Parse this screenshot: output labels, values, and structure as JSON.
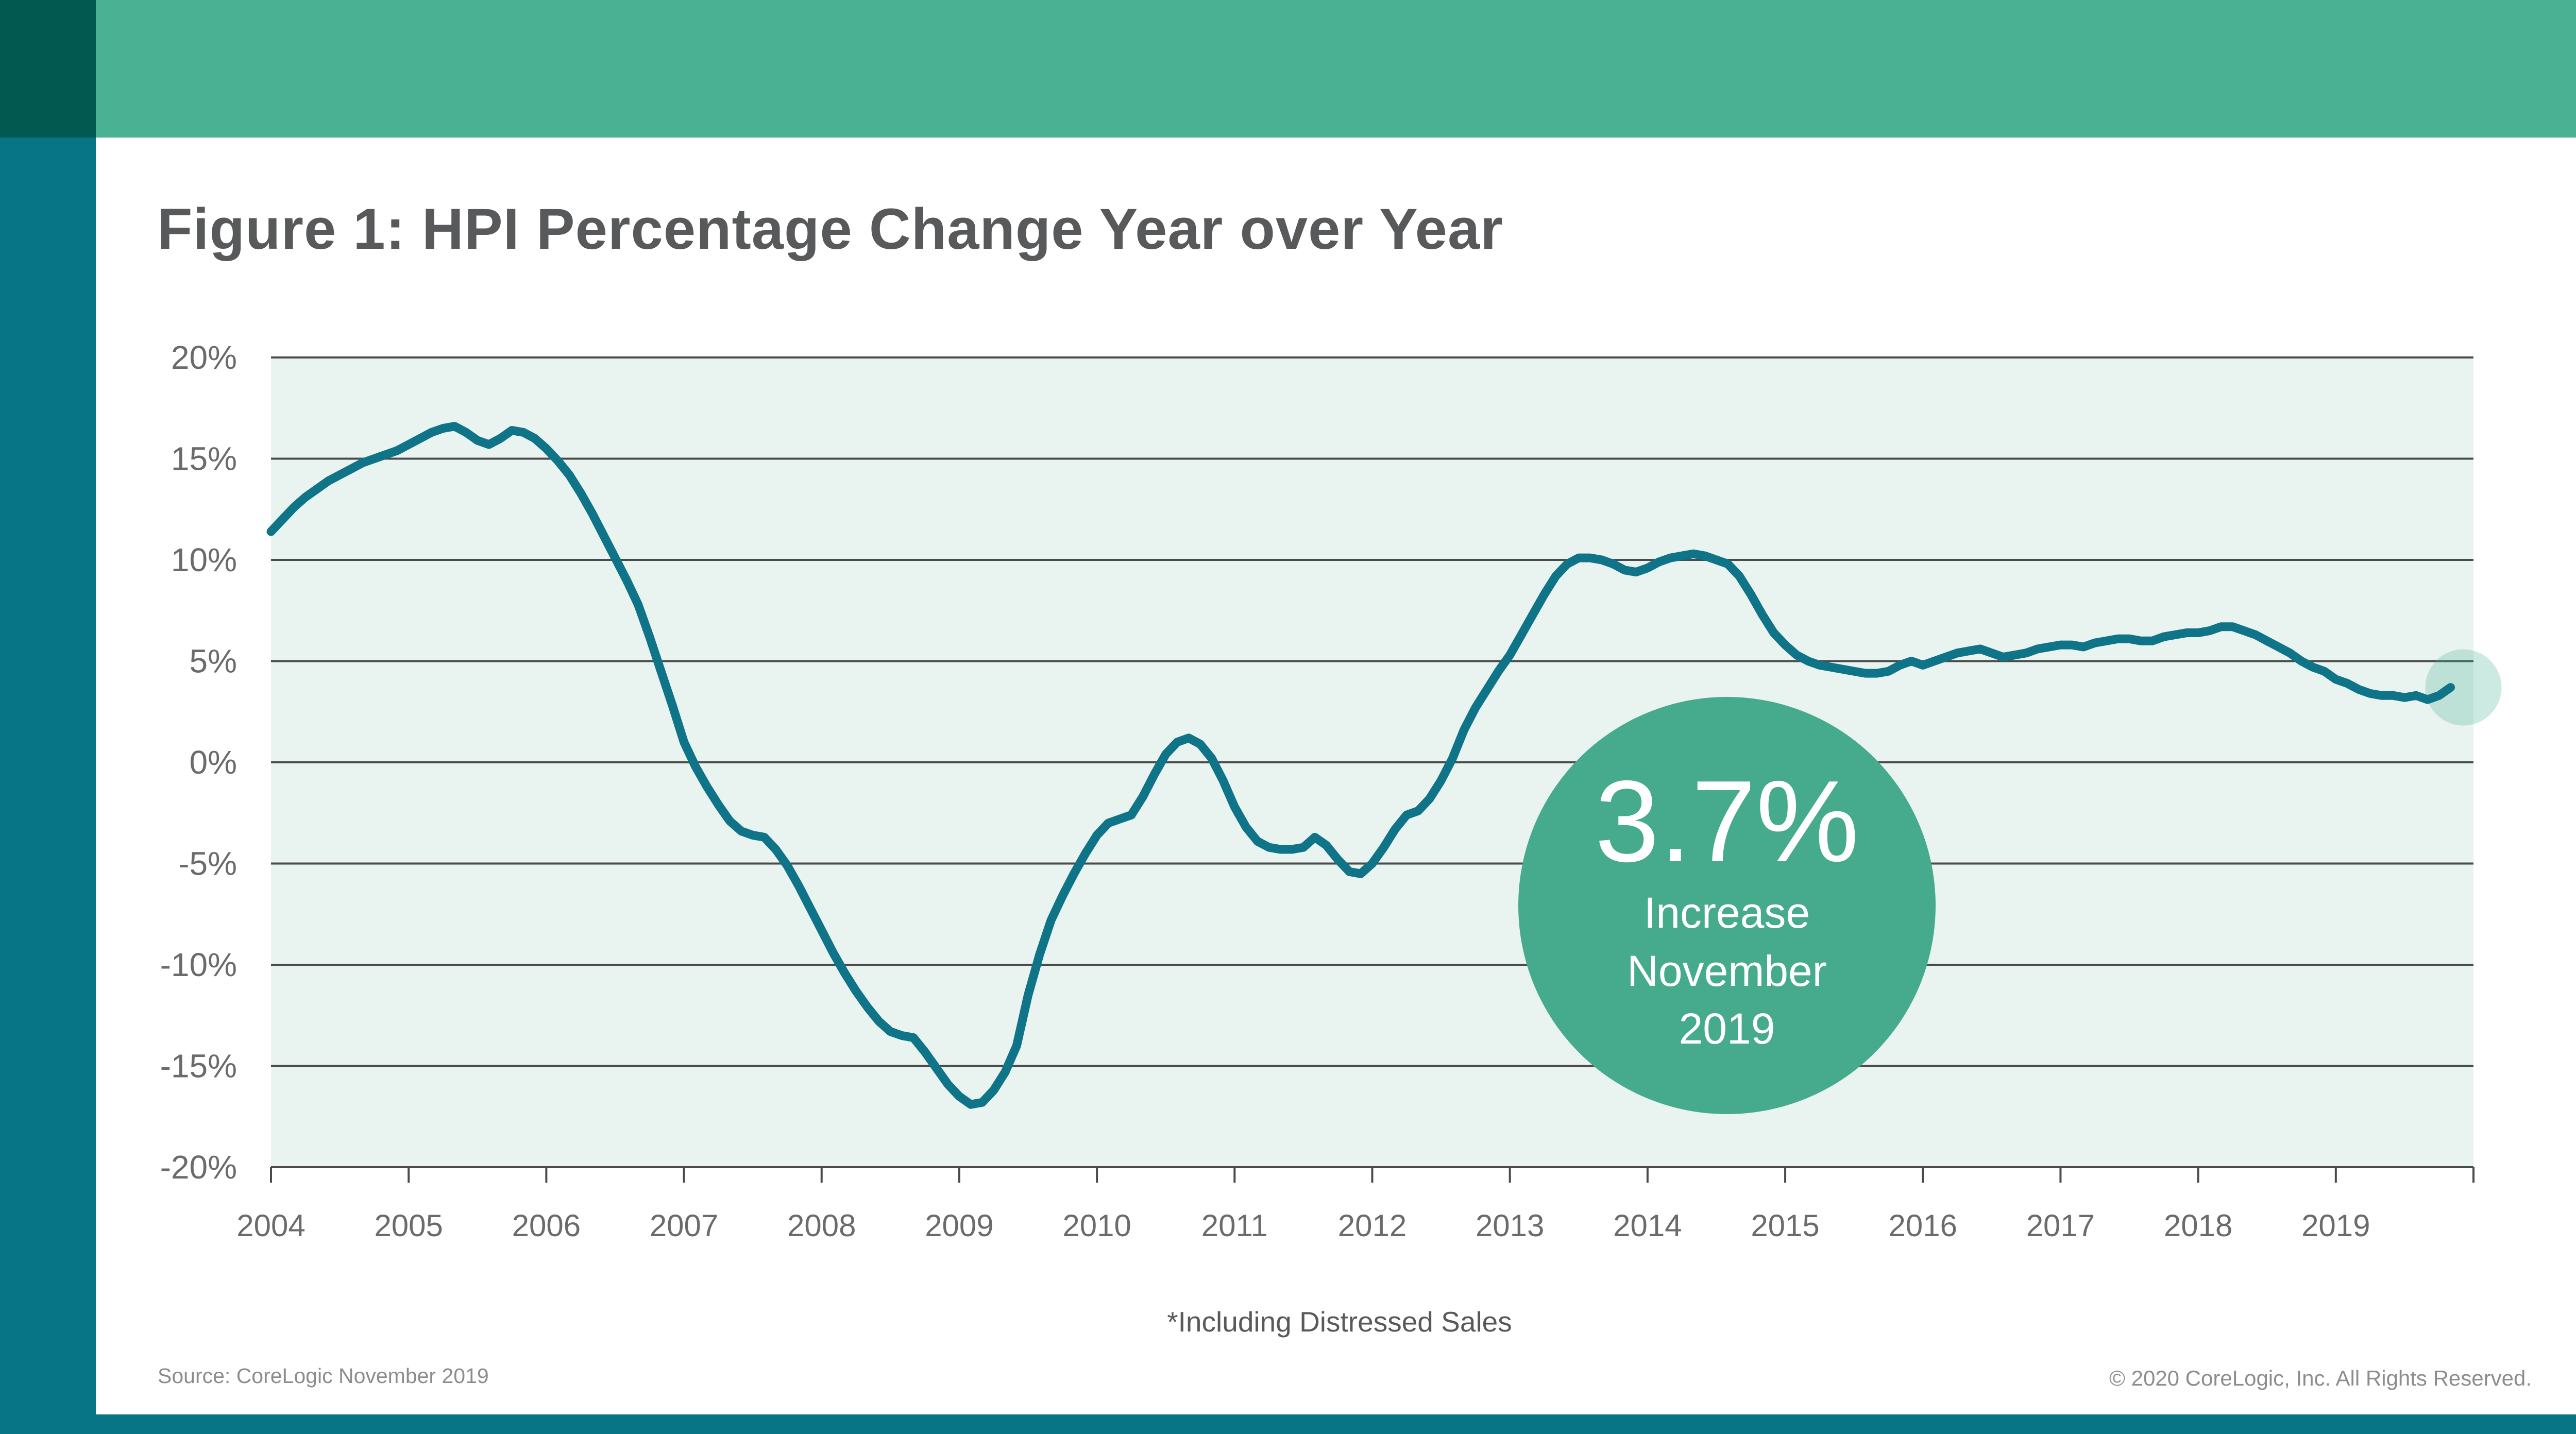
{
  "title": "Figure 1: HPI Percentage Change Year over Year",
  "branding": {
    "corner_color": "#015950",
    "top_bar_color": "#4ab292",
    "left_rail_color": "#087586",
    "bottom_bar_color": "#087586"
  },
  "badge": {
    "value": "3.7%",
    "line1": "Increase",
    "line2": "November",
    "line3": "2019",
    "color": "#46ab8c"
  },
  "footnote": "*Including Distressed Sales",
  "source": "Source: CoreLogic November 2019",
  "copyright": "© 2020 CoreLogic, Inc. All Rights Reserved.",
  "chart_data": {
    "type": "line",
    "title": "Figure 1: HPI Percentage Change Year over Year",
    "xlabel": "",
    "ylabel": "",
    "grid": true,
    "legend": false,
    "plot_bg": "#e9f3ef",
    "grid_color": "#4b4b4b",
    "tick_label_color": "#6a6b6d",
    "ylim": [
      -20,
      20
    ],
    "y_tick_step": 5,
    "y_tick_labels": [
      "20%",
      "15%",
      "10%",
      "5%",
      "0%",
      "-5%",
      "-10%",
      "-15%",
      "-20%"
    ],
    "x_tick_labels": [
      "2004",
      "2005",
      "2006",
      "2007",
      "2008",
      "2009",
      "2010",
      "2011",
      "2012",
      "2013",
      "2014",
      "2015",
      "2016",
      "2017",
      "2018",
      "2019"
    ],
    "x_start": "2004-01",
    "x_end": "2019-11",
    "series": [
      {
        "name": "HPI percentage change year over year (including distressed sales)",
        "color": "#0f7487",
        "monthly_values": [
          11.4,
          12.0,
          12.6,
          13.1,
          13.5,
          13.9,
          14.2,
          14.5,
          14.8,
          15.0,
          15.2,
          15.4,
          15.7,
          16.0,
          16.3,
          16.5,
          16.6,
          16.3,
          15.9,
          15.7,
          16.0,
          16.4,
          16.3,
          16.0,
          15.5,
          14.9,
          14.2,
          13.3,
          12.3,
          11.2,
          10.1,
          9.0,
          7.8,
          6.2,
          4.5,
          2.8,
          1.0,
          -0.2,
          -1.2,
          -2.1,
          -2.9,
          -3.4,
          -3.6,
          -3.7,
          -4.3,
          -5.1,
          -6.1,
          -7.2,
          -8.3,
          -9.4,
          -10.4,
          -11.3,
          -12.1,
          -12.8,
          -13.3,
          -13.5,
          -13.6,
          -14.3,
          -15.1,
          -15.9,
          -16.5,
          -16.9,
          -16.8,
          -16.2,
          -15.3,
          -14.0,
          -11.5,
          -9.5,
          -7.8,
          -6.6,
          -5.5,
          -4.5,
          -3.6,
          -3.0,
          -2.8,
          -2.6,
          -1.7,
          -0.6,
          0.4,
          1.0,
          1.2,
          0.9,
          0.2,
          -0.9,
          -2.2,
          -3.2,
          -3.9,
          -4.2,
          -4.3,
          -4.3,
          -4.2,
          -3.7,
          -4.1,
          -4.8,
          -5.4,
          -5.5,
          -5.0,
          -4.2,
          -3.3,
          -2.6,
          -2.4,
          -1.8,
          -0.9,
          0.2,
          1.6,
          2.7,
          3.6,
          4.5,
          5.3,
          6.3,
          7.3,
          8.3,
          9.2,
          9.8,
          10.1,
          10.1,
          10.0,
          9.8,
          9.5,
          9.4,
          9.6,
          9.9,
          10.1,
          10.2,
          10.3,
          10.2,
          10.0,
          9.8,
          9.2,
          8.3,
          7.3,
          6.4,
          5.8,
          5.3,
          5.0,
          4.8,
          4.7,
          4.6,
          4.5,
          4.4,
          4.4,
          4.5,
          4.8,
          5.0,
          4.8,
          5.0,
          5.2,
          5.4,
          5.5,
          5.6,
          5.4,
          5.2,
          5.3,
          5.4,
          5.6,
          5.7,
          5.8,
          5.8,
          5.7,
          5.9,
          6.0,
          6.1,
          6.1,
          6.0,
          6.0,
          6.2,
          6.3,
          6.4,
          6.4,
          6.5,
          6.7,
          6.7,
          6.5,
          6.3,
          6.0,
          5.7,
          5.4,
          5.0,
          4.7,
          4.5,
          4.1,
          3.9,
          3.6,
          3.4,
          3.3,
          3.3,
          3.2,
          3.3,
          3.1,
          3.3,
          3.7
        ]
      }
    ],
    "highlight": {
      "month": "2019-11",
      "value": 3.7,
      "halo_color": "#48b292"
    }
  }
}
